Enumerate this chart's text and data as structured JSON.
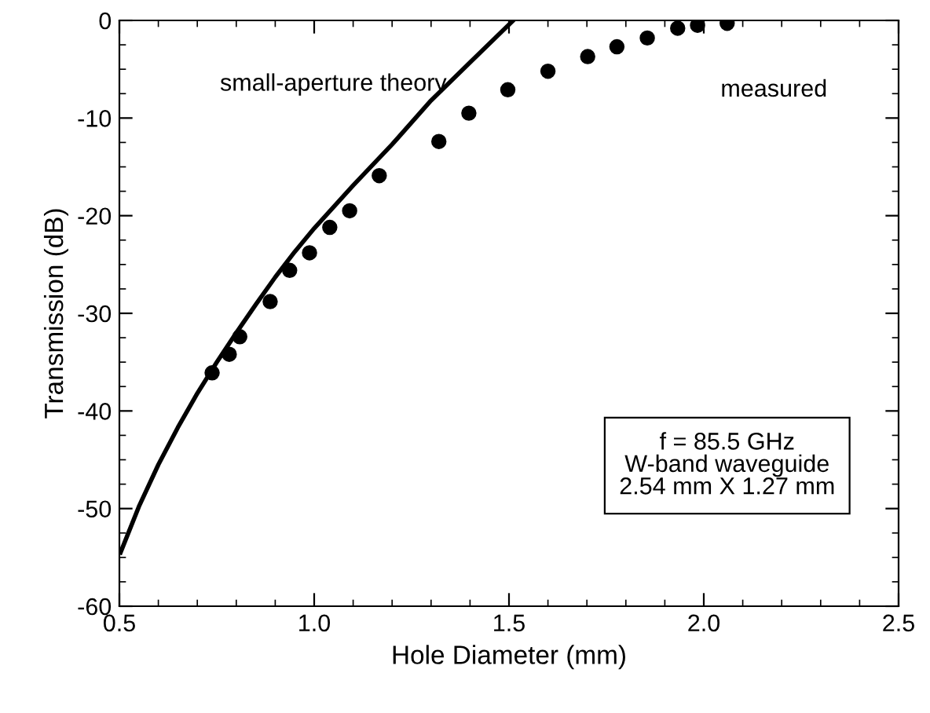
{
  "chart_data": {
    "type": "scatter",
    "xlabel": "Hole Diameter (mm)",
    "ylabel": "Transmission (dB)",
    "xlim": [
      0.5,
      2.5
    ],
    "ylim": [
      -60,
      0
    ],
    "xticks": [
      {
        "value": 0.5,
        "label": "0.5"
      },
      {
        "value": 1.0,
        "label": "1.0"
      },
      {
        "value": 1.5,
        "label": "1.5"
      },
      {
        "value": 2.0,
        "label": "2.0"
      },
      {
        "value": 2.5,
        "label": "2.5"
      }
    ],
    "yticks": [
      -60,
      -50,
      -40,
      -30,
      -20,
      -10,
      0
    ],
    "grid": false,
    "series": [
      {
        "name": "small-aperture theory",
        "type": "line",
        "color": "#000000",
        "line_style": "solid",
        "marker": "none",
        "x": [
          0.503,
          0.55,
          0.6,
          0.65,
          0.7,
          0.75,
          0.8,
          0.85,
          0.9,
          0.95,
          1.0,
          1.1,
          1.2,
          1.3,
          1.4,
          1.511
        ],
        "values": [
          -54.5,
          -49.8,
          -45.5,
          -41.7,
          -38.2,
          -35.0,
          -32.0,
          -29.1,
          -26.3,
          -23.7,
          -21.3,
          -16.9,
          -12.7,
          -8.2,
          -4.3,
          0
        ]
      },
      {
        "name": "measured",
        "color": "#000000",
        "marker": "circle",
        "x": [
          0.738,
          0.782,
          0.809,
          0.887,
          0.937,
          0.988,
          1.04,
          1.091,
          1.167,
          1.32,
          1.397,
          1.497,
          1.6,
          1.702,
          1.777,
          1.855,
          1.933,
          1.984,
          2.06
        ],
        "values": [
          -36.1,
          -34.2,
          -32.4,
          -28.8,
          -25.6,
          -23.8,
          -21.2,
          -19.5,
          -15.9,
          -12.4,
          -9.5,
          -7.1,
          -5.2,
          -3.7,
          -2.7,
          -1.8,
          -0.8,
          -0.5,
          -0.3
        ]
      }
    ],
    "annotations": [
      "f = 85.5 GHz\nW-band waveguide\n2.54 mm X 1.27 mm"
    ]
  }
}
